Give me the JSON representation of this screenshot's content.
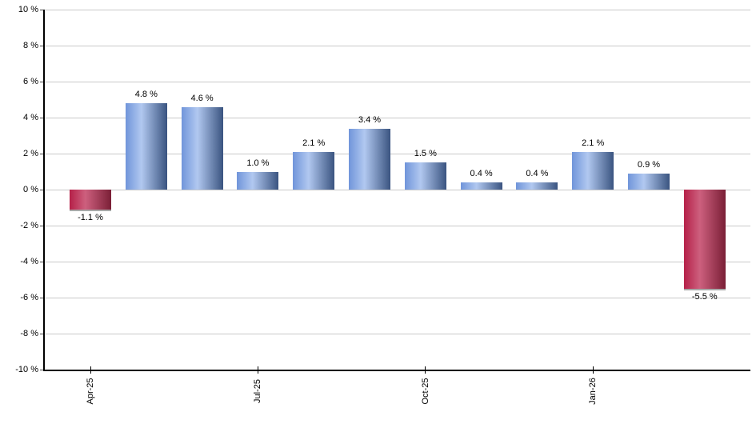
{
  "chart_data": {
    "type": "bar",
    "title": "",
    "xlabel": "",
    "ylabel": "",
    "ylim": [
      -10,
      10
    ],
    "y_tick_step": 2,
    "grid": true,
    "legend": "none",
    "y_tick_labels": [
      "10 %",
      "8 %",
      "6 %",
      "4 %",
      "2 %",
      "0 %",
      "-2 %",
      "-4 %",
      "-6 %",
      "-8 %",
      "-10 %"
    ],
    "x_tick_labels": [
      "Apr-25",
      "Jul-25",
      "Oct-25",
      "Jan-26"
    ],
    "x_tick_indices": [
      0,
      3,
      6,
      9
    ],
    "values": [
      -1.1,
      4.8,
      4.6,
      1.0,
      2.1,
      3.4,
      1.5,
      0.4,
      0.4,
      2.1,
      0.9,
      -5.5
    ],
    "bar_labels": [
      "-1.1 %",
      "4.8 %",
      "4.6 %",
      "1.0 %",
      "2.1 %",
      "3.4 %",
      "1.5 %",
      "0.4 %",
      "0.4 %",
      "2.1 %",
      "0.9 %",
      "-5.5 %"
    ],
    "colors": {
      "positive_gradient": [
        "#7095da",
        "#b1c8f0",
        "#3a5480"
      ],
      "negative_gradient": [
        "#b52048",
        "#cd607e",
        "#7a1f36"
      ],
      "gridline": "#c9c9c9",
      "axis": "#000000",
      "text": "#000000",
      "background": "#ffffff"
    }
  }
}
